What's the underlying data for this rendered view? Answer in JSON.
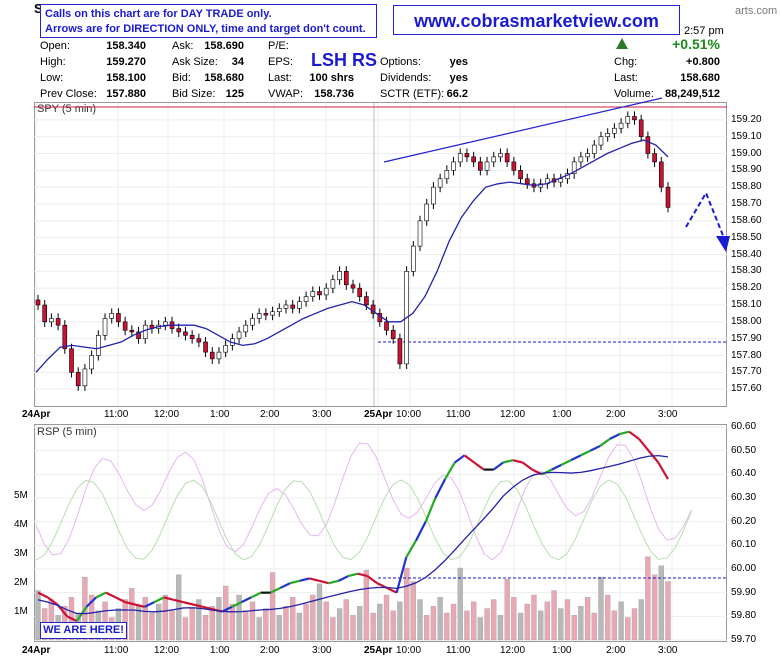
{
  "header": {
    "symbol_fragment": "S",
    "time": "2:57 pm",
    "site_fragment": "arts.com",
    "note_line1": "Calls on this chart are for DAY TRADE only.",
    "note_line2": "Arrows are for DIRECTION ONLY, time and target don't count.",
    "url": "www.cobrasmarketview.com",
    "symbol_label": "LSH RS",
    "change_pct": "+0.51%",
    "quotes": [
      {
        "label": "Open:",
        "value": "158.340"
      },
      {
        "label": "High:",
        "value": "159.270"
      },
      {
        "label": "Low:",
        "value": "158.100"
      },
      {
        "label": "Prev Close:",
        "value": "157.880"
      },
      {
        "label": "Ask:",
        "value": "158.690"
      },
      {
        "label": "Ask Size:",
        "value": "34"
      },
      {
        "label": "Bid:",
        "value": "158.680"
      },
      {
        "label": "Bid Size:",
        "value": "125"
      },
      {
        "label": "P/E:",
        "value": ""
      },
      {
        "label": "EPS:",
        "value": ""
      },
      {
        "label": "Last:",
        "value": "100 shrs"
      },
      {
        "label": "VWAP:",
        "value": "158.736"
      },
      {
        "label": "Options:",
        "value": "yes"
      },
      {
        "label": "Dividends:",
        "value": "yes"
      },
      {
        "label": "SCTR (ETF):",
        "value": "66.2"
      },
      {
        "label": "Chg:",
        "value": "+0.800"
      },
      {
        "label": "Last:",
        "value": "158.680"
      },
      {
        "label": "Volume:",
        "value": "88,249,512"
      }
    ]
  },
  "chart_data": [
    {
      "type": "candlestick",
      "label": "SPY (5 min)",
      "ylim": [
        157.5,
        159.3
      ],
      "yticks": [
        157.6,
        157.7,
        157.8,
        157.9,
        158.0,
        158.1,
        158.2,
        158.3,
        158.4,
        158.5,
        158.6,
        158.7,
        158.8,
        158.9,
        159.0,
        159.1,
        159.2
      ],
      "xticks": [
        "24Apr",
        "11:00",
        "12:00",
        "1:00",
        "2:00",
        "3:00",
        "25Apr",
        "10:00",
        "11:00",
        "12:00",
        "1:00",
        "2:00",
        "3:00"
      ],
      "close": [
        158.1,
        158.0,
        158.02,
        157.98,
        157.84,
        157.7,
        157.62,
        157.72,
        157.8,
        157.92,
        158.02,
        158.05,
        158.0,
        157.95,
        157.94,
        157.9,
        157.98,
        157.96,
        157.98,
        158.0,
        157.96,
        157.94,
        157.92,
        157.9,
        157.88,
        157.82,
        157.78,
        157.82,
        157.86,
        157.9,
        157.94,
        157.98,
        158.02,
        158.05,
        158.04,
        158.06,
        158.08,
        158.1,
        158.08,
        158.12,
        158.15,
        158.18,
        158.16,
        158.2,
        158.25,
        158.3,
        158.22,
        158.2,
        158.15,
        158.1,
        158.05,
        158.0,
        157.95,
        157.9,
        157.75,
        158.3,
        158.45,
        158.6,
        158.7,
        158.8,
        158.85,
        158.9,
        158.95,
        159.0,
        158.98,
        158.95,
        158.9,
        158.95,
        158.98,
        159.0,
        158.95,
        158.9,
        158.85,
        158.82,
        158.8,
        158.82,
        158.85,
        158.83,
        158.85,
        158.88,
        158.95,
        158.98,
        159.0,
        159.05,
        159.1,
        159.12,
        159.15,
        159.18,
        159.22,
        159.2,
        159.1,
        159.0,
        158.95,
        158.8,
        158.68
      ],
      "vwap_line": [
        157.7,
        157.78,
        157.85,
        157.86,
        157.85,
        157.84,
        157.86,
        157.88,
        157.92,
        157.95,
        157.97,
        157.98,
        157.98,
        157.98,
        157.96,
        157.92,
        157.88,
        157.86,
        157.87,
        157.9,
        157.94,
        157.98,
        158.02,
        158.05,
        158.08,
        158.1,
        158.12,
        158.1,
        158.05,
        158.0,
        158.0,
        158.05,
        158.15,
        158.3,
        158.48,
        158.62,
        158.72,
        158.8,
        158.82,
        158.83,
        158.82,
        158.81,
        158.82,
        158.85,
        158.88,
        158.92,
        158.96,
        159.0,
        159.03,
        159.06,
        159.08,
        159.05,
        158.98
      ],
      "prev_close": 157.88,
      "annotations": [
        "upper trendline",
        "dashed down arrow"
      ]
    },
    {
      "type": "line",
      "label": "RSP (5 min)",
      "ylim": [
        59.7,
        60.6
      ],
      "yticks": [
        59.7,
        59.8,
        59.9,
        60.0,
        60.1,
        60.2,
        60.3,
        60.4,
        60.5,
        60.6
      ],
      "volume_ticks": [
        "1M",
        "2M",
        "3M",
        "4M",
        "5M"
      ],
      "values": [
        59.9,
        59.88,
        59.85,
        59.8,
        59.78,
        59.84,
        59.88,
        59.9,
        59.88,
        59.86,
        59.85,
        59.84,
        59.86,
        59.88,
        59.87,
        59.86,
        59.85,
        59.84,
        59.83,
        59.82,
        59.84,
        59.86,
        59.88,
        59.9,
        59.9,
        59.92,
        59.94,
        59.95,
        59.96,
        59.95,
        59.94,
        59.95,
        59.97,
        59.98,
        59.97,
        59.94,
        59.92,
        59.9,
        60.05,
        60.12,
        60.2,
        60.3,
        60.38,
        60.45,
        60.48,
        60.45,
        60.42,
        60.42,
        60.45,
        60.46,
        60.45,
        60.42,
        60.4,
        60.42,
        60.44,
        60.46,
        60.48,
        60.5,
        60.52,
        60.55,
        60.57,
        60.58,
        60.55,
        60.5,
        60.45,
        60.38
      ]
    }
  ],
  "footer": {
    "here_label": "WE ARE HERE!"
  }
}
